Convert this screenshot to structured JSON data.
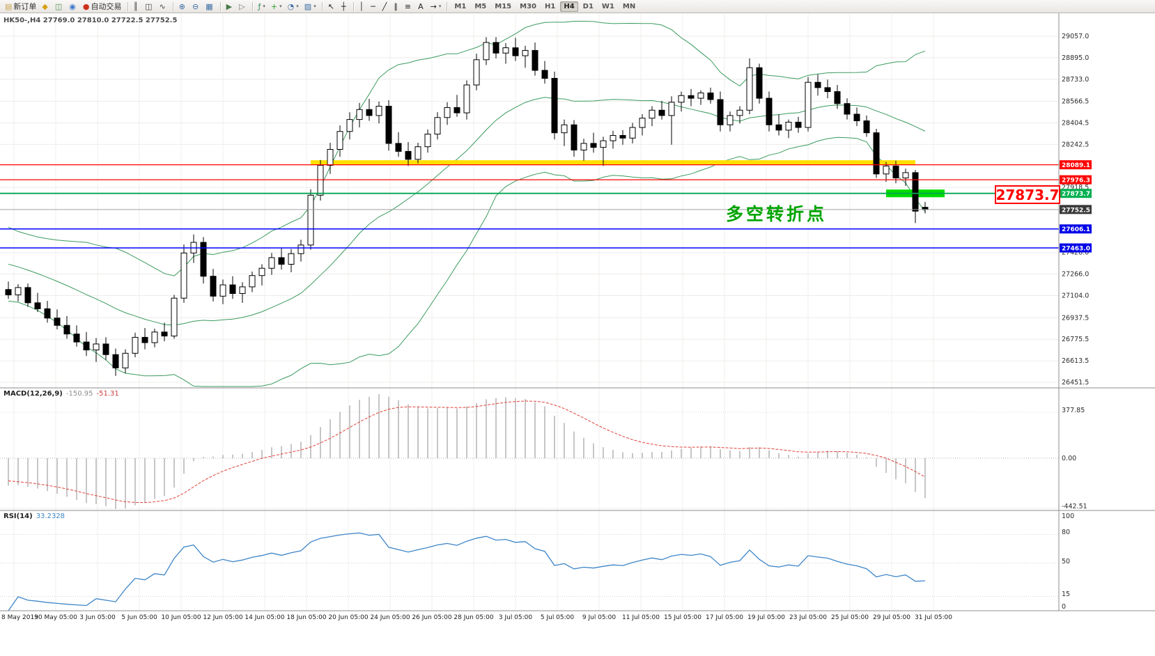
{
  "toolbar": {
    "new_order_label": "新订单",
    "auto_trading_label": "自动交易",
    "items": [
      {
        "name": "new-order-button",
        "glyph": "▤",
        "label": "新订单",
        "color": "#c8a24a",
        "sep_after": false
      },
      {
        "name": "sound-alert-icon",
        "glyph": "◆",
        "color": "#d8a018"
      },
      {
        "name": "chart-window-icon",
        "glyph": "◫",
        "color": "#4f8f4f"
      },
      {
        "name": "refresh-icon",
        "glyph": "◉",
        "color": "#3c78c8"
      },
      {
        "name": "auto-trading-button",
        "glyph": "●",
        "label": "自动交易",
        "color": "#d03020",
        "sep_after": true
      },
      {
        "name": "bar-chart-icon",
        "glyph": "║",
        "color": "#444"
      },
      {
        "name": "candlestick-chart-icon",
        "glyph": "◫",
        "color": "#444"
      },
      {
        "name": "line-chart-icon",
        "glyph": "∿",
        "color": "#444",
        "sep_after": true
      },
      {
        "name": "zoom-in-icon",
        "glyph": "⊕",
        "color": "#3c6ea5"
      },
      {
        "name": "zoom-out-icon",
        "glyph": "⊖",
        "color": "#3c6ea5"
      },
      {
        "name": "tile-windows-icon",
        "glyph": "▦",
        "color": "#3c6ea5",
        "sep_after": true
      },
      {
        "name": "auto-scroll-icon",
        "glyph": "▶",
        "color": "#4a7a4a"
      },
      {
        "name": "chart-shift-icon",
        "glyph": "▷",
        "color": "#777",
        "sep_after": true
      },
      {
        "name": "indicators-icon",
        "glyph": "ƒ",
        "color": "#2e8b57",
        "caret": true
      },
      {
        "name": "add-indicator-icon",
        "glyph": "+",
        "color": "#2aa02a",
        "caret": true
      },
      {
        "name": "period-clock-icon",
        "glyph": "◔",
        "color": "#3c6ea5",
        "caret": true
      },
      {
        "name": "templates-icon",
        "glyph": "▨",
        "color": "#3c6ea5",
        "caret": true,
        "sep_after": true
      },
      {
        "name": "cursor-icon",
        "glyph": "↖",
        "color": "#222"
      },
      {
        "name": "crosshair-icon",
        "glyph": "┼",
        "color": "#222",
        "sep_after": true
      },
      {
        "name": "vertical-line-icon",
        "glyph": "│",
        "color": "#222"
      },
      {
        "name": "horizontal-line-icon",
        "glyph": "─",
        "color": "#222"
      },
      {
        "name": "trendline-icon",
        "glyph": "╱",
        "color": "#222"
      },
      {
        "name": "channel-icon",
        "glyph": "∥",
        "color": "#222"
      },
      {
        "name": "fibonacci-icon",
        "glyph": "≡",
        "color": "#222",
        "sep_after": false
      },
      {
        "name": "text-label-icon",
        "glyph": "A",
        "color": "#222"
      },
      {
        "name": "arrows-icon",
        "glyph": "→",
        "color": "#222",
        "caret": true,
        "sep_after": true
      }
    ],
    "timeframes": [
      "M1",
      "M5",
      "M15",
      "M30",
      "H1",
      "H4",
      "D1",
      "W1",
      "MN"
    ],
    "active_timeframe": "H4"
  },
  "main_chart": {
    "title": "HK50-,H4 27769.0 27810.0 27722.5 27752.5",
    "annotation": "多空转折点",
    "price_tag": "27873.7",
    "current_price": "27752.5"
  },
  "macd": {
    "name": "MACD(12,26,9)",
    "main_value": "-150.95",
    "signal_value": "-51.31",
    "scale": [
      "377.85",
      "0.00",
      "-442.51"
    ]
  },
  "rsi": {
    "name": "RSI(14)",
    "value": "33.2328",
    "scale": [
      "100",
      "80",
      "50",
      "15",
      "0"
    ]
  },
  "time_axis": [
    "8 May 2019",
    "30 May 05:00",
    "3 Jun 05:00",
    "5 Jun 05:00",
    "10 Jun 05:00",
    "12 Jun 05:00",
    "14 Jun 05:00",
    "18 Jun 05:00",
    "20 Jun 05:00",
    "24 Jun 05:00",
    "26 Jun 05:00",
    "28 Jun 05:00",
    "3 Jul 05:00",
    "5 Jul 05:00",
    "9 Jul 05:00",
    "11 Jul 05:00",
    "15 Jul 05:00",
    "17 Jul 05:00",
    "19 Jul 05:00",
    "23 Jul 05:00",
    "25 Jul 05:00",
    "29 Jul 05:00",
    "31 Jul 05:00"
  ],
  "chart_data": {
    "type": "candlestick",
    "symbol": "HK50-",
    "timeframe": "H4",
    "ohlc_current": {
      "open": 27769.0,
      "high": 27810.0,
      "low": 27722.5,
      "close": 27752.5
    },
    "price_axis": {
      "ticks": [
        29057.0,
        28895.0,
        28733.0,
        28566.5,
        28404.5,
        28242.5,
        27918.5,
        27428.0,
        27266.0,
        27104.0,
        26937.5,
        26775.5,
        26613.5,
        26451.5
      ]
    },
    "levels": [
      {
        "price": 28089.1,
        "color": "#ff0000",
        "label_bg": "#ff0000",
        "width": 1.3
      },
      {
        "price": 27976.3,
        "color": "#ff0000",
        "label_bg": "#ff0000",
        "width": 1.3
      },
      {
        "price": 27873.7,
        "color": "#00a651",
        "label_bg": "#00b050",
        "width": 1.8
      },
      {
        "price": 27752.5,
        "color": "#a0a0a0",
        "label_bg": "#3a3a3a",
        "width": 1,
        "current": true
      },
      {
        "price": 27606.1,
        "color": "#0000ff",
        "label_bg": "#0000e8",
        "width": 1.5
      },
      {
        "price": 27463.0,
        "color": "#0000ff",
        "label_bg": "#0000e8",
        "width": 1.5
      }
    ],
    "highlight_bars": [
      {
        "price": 28105,
        "from_index": 31,
        "to_index": 93,
        "color": "#ffdf00",
        "height": 7
      },
      {
        "price": 27873.7,
        "from_index": 90,
        "to_index": 96,
        "color": "#00dc00",
        "height": 11
      }
    ],
    "bollinger": {
      "period": 20,
      "deviation": 2
    },
    "macd_params": "12,26,9",
    "rsi_period": 14,
    "candles": [
      [
        27150,
        27210,
        27080,
        27110
      ],
      [
        27110,
        27190,
        27060,
        27165
      ],
      [
        27165,
        27195,
        27020,
        27050
      ],
      [
        27050,
        27125,
        26980,
        27005
      ],
      [
        27005,
        27065,
        26900,
        26935
      ],
      [
        26935,
        27000,
        26850,
        26880
      ],
      [
        26880,
        26950,
        26780,
        26815
      ],
      [
        26815,
        26880,
        26720,
        26755
      ],
      [
        26755,
        26830,
        26650,
        26695
      ],
      [
        26695,
        26785,
        26605,
        26740
      ],
      [
        26740,
        26790,
        26620,
        26660
      ],
      [
        26660,
        26705,
        26500,
        26560
      ],
      [
        26560,
        26700,
        26520,
        26670
      ],
      [
        26670,
        26825,
        26640,
        26790
      ],
      [
        26790,
        26860,
        26700,
        26750
      ],
      [
        26750,
        26855,
        26715,
        26830
      ],
      [
        26830,
        26900,
        26760,
        26800
      ],
      [
        26800,
        27110,
        26780,
        27085
      ],
      [
        27085,
        27490,
        27050,
        27425
      ],
      [
        27425,
        27565,
        27350,
        27505
      ],
      [
        27505,
        27545,
        27195,
        27250
      ],
      [
        27250,
        27305,
        27060,
        27100
      ],
      [
        27100,
        27225,
        27040,
        27185
      ],
      [
        27185,
        27250,
        27080,
        27120
      ],
      [
        27120,
        27205,
        27050,
        27170
      ],
      [
        27170,
        27285,
        27130,
        27255
      ],
      [
        27255,
        27340,
        27180,
        27310
      ],
      [
        27310,
        27425,
        27260,
        27390
      ],
      [
        27390,
        27460,
        27300,
        27340
      ],
      [
        27340,
        27455,
        27280,
        27420
      ],
      [
        27420,
        27525,
        27360,
        27485
      ],
      [
        27485,
        27905,
        27450,
        27860
      ],
      [
        27860,
        28125,
        27820,
        28085
      ],
      [
        28085,
        28255,
        28020,
        28205
      ],
      [
        28205,
        28385,
        28150,
        28340
      ],
      [
        28340,
        28485,
        28280,
        28430
      ],
      [
        28430,
        28555,
        28370,
        28505
      ],
      [
        28505,
        28585,
        28420,
        28460
      ],
      [
        28460,
        28565,
        28400,
        28530
      ],
      [
        28530,
        28575,
        28195,
        28250
      ],
      [
        28250,
        28335,
        28150,
        28190
      ],
      [
        28190,
        28260,
        28080,
        28130
      ],
      [
        28130,
        28255,
        28100,
        28225
      ],
      [
        28225,
        28355,
        28180,
        28320
      ],
      [
        28320,
        28485,
        28280,
        28445
      ],
      [
        28445,
        28560,
        28390,
        28520
      ],
      [
        28520,
        28615,
        28450,
        28480
      ],
      [
        28480,
        28725,
        28430,
        28690
      ],
      [
        28690,
        28925,
        28650,
        28880
      ],
      [
        28880,
        29050,
        28840,
        29010
      ],
      [
        29010,
        29050,
        28890,
        28930
      ],
      [
        28930,
        29005,
        28850,
        28970
      ],
      [
        28970,
        29045,
        28870,
        28910
      ],
      [
        28910,
        28985,
        28820,
        28950
      ],
      [
        28950,
        29010,
        28760,
        28800
      ],
      [
        28800,
        28870,
        28700,
        28740
      ],
      [
        28740,
        28790,
        28280,
        28330
      ],
      [
        28330,
        28430,
        28230,
        28390
      ],
      [
        28390,
        28425,
        28150,
        28200
      ],
      [
        28200,
        28285,
        28120,
        28250
      ],
      [
        28250,
        28330,
        28180,
        28220
      ],
      [
        28220,
        28300,
        28080,
        28270
      ],
      [
        28270,
        28345,
        28210,
        28310
      ],
      [
        28310,
        28350,
        28240,
        28290
      ],
      [
        28290,
        28405,
        28250,
        28370
      ],
      [
        28370,
        28470,
        28310,
        28440
      ],
      [
        28440,
        28530,
        28380,
        28500
      ],
      [
        28500,
        28570,
        28430,
        28460
      ],
      [
        28460,
        28605,
        28240,
        28560
      ],
      [
        28560,
        28640,
        28490,
        28610
      ],
      [
        28610,
        28660,
        28530,
        28590
      ],
      [
        28590,
        28650,
        28540,
        28630
      ],
      [
        28630,
        28670,
        28550,
        28580
      ],
      [
        28580,
        28640,
        28340,
        28390
      ],
      [
        28390,
        28490,
        28340,
        28460
      ],
      [
        28460,
        28530,
        28400,
        28500
      ],
      [
        28500,
        28890,
        28470,
        28820
      ],
      [
        28820,
        28850,
        28550,
        28590
      ],
      [
        28590,
        28640,
        28340,
        28390
      ],
      [
        28390,
        28470,
        28310,
        28350
      ],
      [
        28350,
        28430,
        28290,
        28410
      ],
      [
        28410,
        28450,
        28330,
        28370
      ],
      [
        28370,
        28750,
        28340,
        28710
      ],
      [
        28710,
        28770,
        28610,
        28670
      ],
      [
        28670,
        28730,
        28590,
        28640
      ],
      [
        28640,
        28690,
        28510,
        28550
      ],
      [
        28550,
        28590,
        28430,
        28470
      ],
      [
        28470,
        28520,
        28380,
        28420
      ],
      [
        28420,
        28460,
        28300,
        28330
      ],
      [
        28330,
        28360,
        27990,
        28020
      ],
      [
        28020,
        28110,
        27960,
        28080
      ],
      [
        28080,
        28120,
        27950,
        27990
      ],
      [
        27990,
        28060,
        27930,
        28030
      ],
      [
        28030,
        28050,
        27650,
        27740
      ],
      [
        27769,
        27810,
        27722.5,
        27752.5
      ]
    ]
  }
}
